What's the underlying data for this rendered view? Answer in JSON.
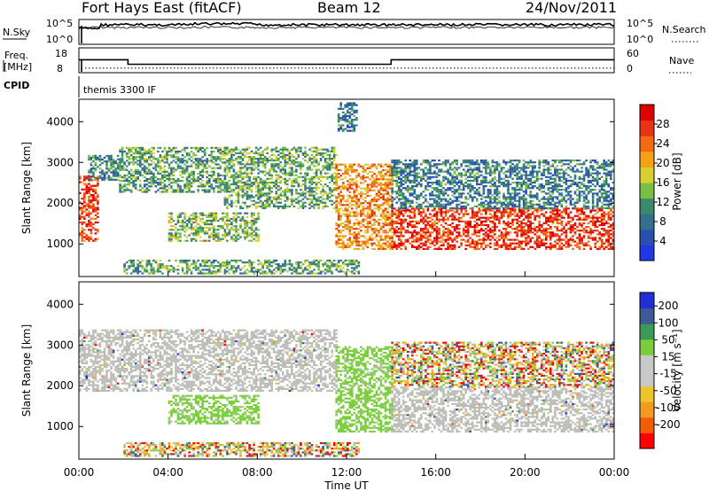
{
  "header": {
    "station": "Fort Hays East (fitACF)",
    "beam": "Beam 12",
    "date": "24/Nov/2011"
  },
  "strips": {
    "nsky": {
      "left_label": "N.Sky",
      "right_label": "N.Search",
      "left_ticks": [
        "10^5",
        "10^0"
      ],
      "right_ticks": [
        "10^5",
        "10^0"
      ]
    },
    "freq": {
      "left_label_1": "Freq.",
      "left_label_2": "[MHz]",
      "right_label": "Nave",
      "left_ticks": [
        "18",
        "8"
      ],
      "right_ticks": [
        "60",
        "0"
      ],
      "freq_steps": [
        {
          "t": 0.0,
          "mhz": 13.2
        },
        {
          "t": 2.2,
          "mhz": 11.4
        },
        {
          "t": 14.0,
          "mhz": 13.2
        },
        {
          "t": 24.0,
          "mhz": 13.2
        }
      ],
      "nave_level": 11
    },
    "cpid": {
      "label": "CPID",
      "program": "themis 3300 IF"
    }
  },
  "colors": {
    "power": [
      "#1f37e6",
      "#294fb0",
      "#32708c",
      "#3a8a6b",
      "#78c043",
      "#d8d030",
      "#f6a015",
      "#f26a12",
      "#e83410",
      "#e00000"
    ],
    "velocity": [
      "#ff0000",
      "#f25c08",
      "#f29a1f",
      "#ecc52c",
      "#c8c8c8",
      "#c8c8c8",
      "#7acd3b",
      "#3a9a58",
      "#3c5a95",
      "#2030d8"
    ],
    "ground_scatter": "#bdbdb7"
  },
  "chart_data": [
    {
      "type": "heatmap",
      "name": "power-panel",
      "ylabel": "Slant Range [km]",
      "xlim": [
        0,
        24
      ],
      "ylim": [
        200,
        4550
      ],
      "y_ticks": [
        "1000",
        "2000",
        "3000",
        "4000"
      ],
      "colorbar": {
        "label": "Power [dB]",
        "range": [
          0,
          32
        ],
        "ticks": [
          "4",
          "8",
          "12",
          "16",
          "20",
          "24",
          "28"
        ]
      },
      "regions": [
        {
          "t0": 0.0,
          "t1": 0.8,
          "r0": 1100,
          "r1": 2700,
          "level": 27
        },
        {
          "t0": 0.4,
          "t1": 1.8,
          "r0": 2600,
          "r1": 3200,
          "level": 10
        },
        {
          "t0": 1.8,
          "t1": 6.5,
          "r0": 2300,
          "r1": 3400,
          "level": 12
        },
        {
          "t0": 4.0,
          "t1": 8.0,
          "r0": 1100,
          "r1": 1800,
          "level": 14
        },
        {
          "t0": 6.5,
          "t1": 11.5,
          "r0": 1900,
          "r1": 3400,
          "level": 13
        },
        {
          "t0": 11.5,
          "t1": 14.0,
          "r0": 900,
          "r1": 3000,
          "level": 22
        },
        {
          "t0": 14.0,
          "t1": 24.0,
          "r0": 900,
          "r1": 1900,
          "level": 28
        },
        {
          "t0": 14.0,
          "t1": 24.0,
          "r0": 1900,
          "r1": 3100,
          "level": 9
        },
        {
          "t0": 2.0,
          "t1": 12.5,
          "r0": 300,
          "r1": 650,
          "level": 12
        },
        {
          "t0": 11.6,
          "t1": 12.4,
          "r0": 3800,
          "r1": 4500,
          "level": 8
        }
      ]
    },
    {
      "type": "heatmap",
      "name": "velocity-panel",
      "ylabel": "Slant Range [km]",
      "xlabel": "Time UT",
      "xlim": [
        0,
        24
      ],
      "ylim": [
        200,
        4550
      ],
      "x_ticks": [
        "00:00",
        "04:00",
        "08:00",
        "12:00",
        "16:00",
        "20:00",
        "00:00"
      ],
      "y_ticks": [
        "1000",
        "2000",
        "3000",
        "4000"
      ],
      "colorbar": {
        "label": "Velocity [m s⁻¹]",
        "ticks": [
          "200",
          "100",
          "50",
          "15",
          "-15",
          "-50",
          "-100",
          "-200"
        ]
      },
      "regions": [
        {
          "t0": 0.0,
          "t1": 11.5,
          "r0": 1900,
          "r1": 3400,
          "class": "ground"
        },
        {
          "t0": 4.0,
          "t1": 8.0,
          "r0": 1100,
          "r1": 1800,
          "class": "positive_50"
        },
        {
          "t0": 11.5,
          "t1": 14.0,
          "r0": 900,
          "r1": 3000,
          "class": "positive_50"
        },
        {
          "t0": 14.0,
          "t1": 24.0,
          "r0": 900,
          "r1": 2000,
          "class": "ground"
        },
        {
          "t0": 14.0,
          "t1": 24.0,
          "r0": 2000,
          "r1": 3100,
          "class": "mixed"
        },
        {
          "t0": 2.0,
          "t1": 12.5,
          "r0": 300,
          "r1": 650,
          "class": "mixed"
        }
      ]
    }
  ]
}
